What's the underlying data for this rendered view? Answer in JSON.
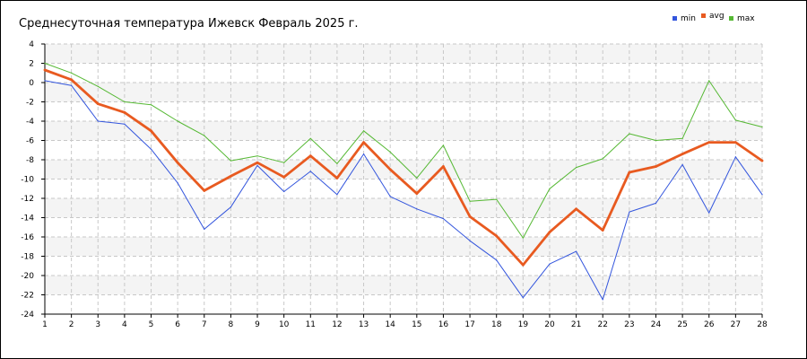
{
  "chart_data": {
    "type": "line",
    "title": "Среднесуточная температура Ижевск  Февраль 2025 г.",
    "xlabel": "",
    "ylabel": "",
    "x": [
      1,
      2,
      3,
      4,
      5,
      6,
      7,
      8,
      9,
      10,
      11,
      12,
      13,
      14,
      15,
      16,
      17,
      18,
      19,
      20,
      21,
      22,
      23,
      24,
      25,
      26,
      27,
      28
    ],
    "ylim": [
      -24,
      4
    ],
    "yticks": [
      4,
      2,
      0,
      -2,
      -4,
      -6,
      -8,
      -10,
      -12,
      -14,
      -16,
      -18,
      -20,
      -22,
      -24
    ],
    "grid": true,
    "legend": "top-right",
    "series": [
      {
        "name": "min",
        "color": "#3355dd",
        "values": [
          0.2,
          -0.3,
          -4.0,
          -4.3,
          -6.9,
          -10.4,
          -15.2,
          -12.9,
          -8.6,
          -11.3,
          -9.2,
          -11.6,
          -7.4,
          -11.8,
          -13.1,
          -14.1,
          -16.4,
          -18.4,
          -22.3,
          -18.8,
          -17.5,
          -22.5,
          -13.4,
          -12.5,
          -8.5,
          -13.5,
          -7.7,
          -11.6
        ]
      },
      {
        "name": "avg",
        "color": "#e85a20",
        "values": [
          1.3,
          0.3,
          -2.2,
          -3.1,
          -5.0,
          -8.3,
          -11.2,
          -9.7,
          -8.3,
          -9.8,
          -7.6,
          -9.9,
          -6.2,
          -9.0,
          -11.5,
          -8.7,
          -13.9,
          -15.9,
          -18.9,
          -15.5,
          -13.1,
          -15.3,
          -9.3,
          -8.7,
          -7.4,
          -6.2,
          -6.2,
          -8.1
        ]
      },
      {
        "name": "max",
        "color": "#55b833",
        "values": [
          2.0,
          1.0,
          -0.4,
          -2.0,
          -2.3,
          -4.0,
          -5.5,
          -8.1,
          -7.6,
          -8.3,
          -5.8,
          -8.4,
          -5.0,
          -7.2,
          -9.9,
          -6.5,
          -12.3,
          -12.1,
          -16.1,
          -11.0,
          -8.8,
          -7.9,
          -5.3,
          -6.0,
          -5.8,
          0.2,
          -3.9,
          -4.6
        ]
      }
    ]
  }
}
